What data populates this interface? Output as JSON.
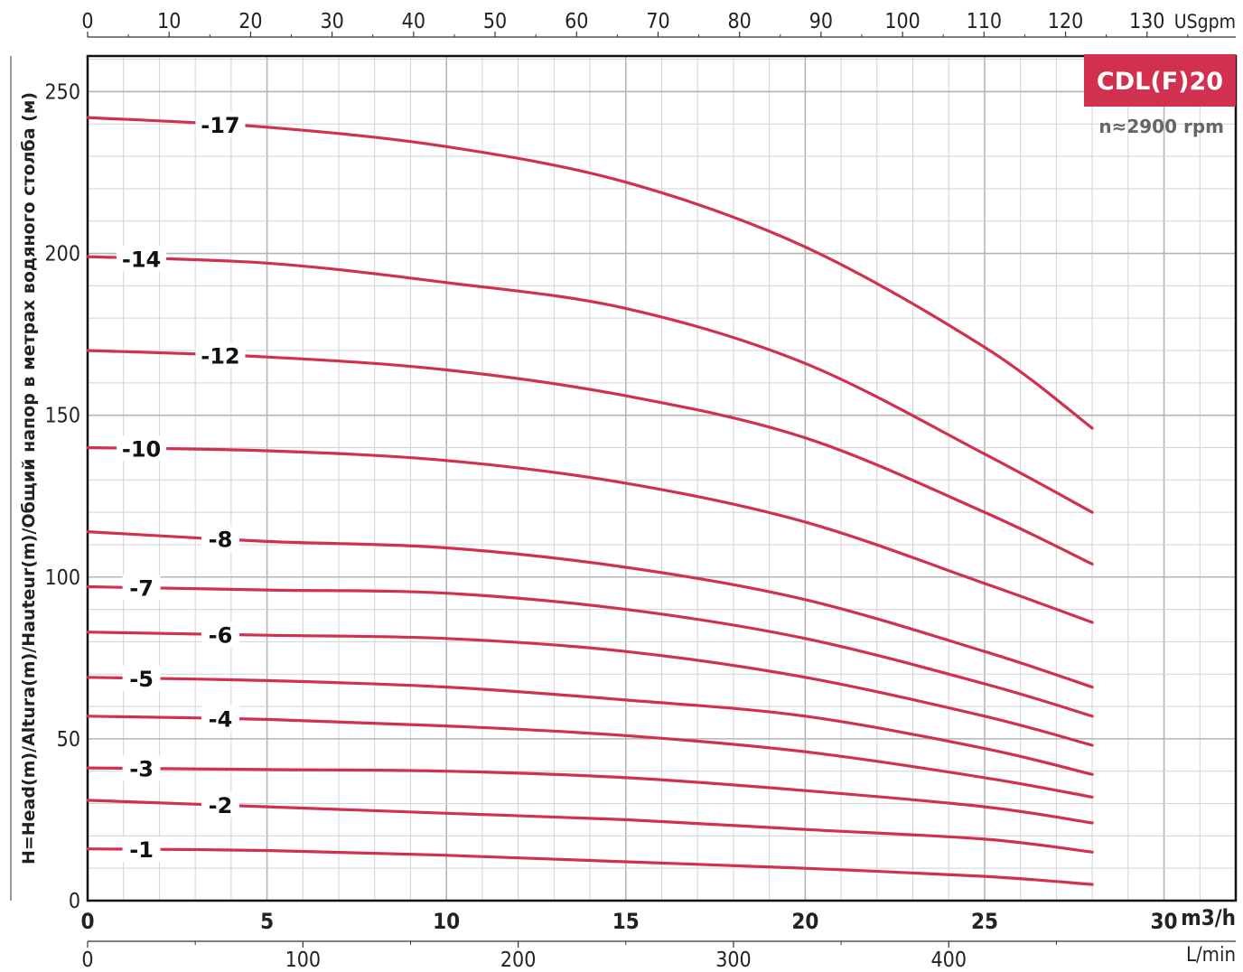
{
  "model": "CDL(F)20",
  "speed": "n≈2900 rpm",
  "colors": {
    "curve": "#d1314f",
    "model_box": "#d1314f",
    "grid": "#c8c8c8"
  },
  "chart_data": {
    "type": "line",
    "title": "",
    "ylabel": "H=Head(m)/Altura(m)/Hauteur(m)/Общий напор в метрах водяного столба (м)",
    "xlabel": "m3/h",
    "xlim": [
      0,
      30
    ],
    "ylim": [
      0,
      250
    ],
    "grid": true,
    "x_axis_bottom": {
      "unit": "m3/h",
      "ticks": [
        "0",
        "5",
        "10",
        "15",
        "20",
        "25",
        "30"
      ]
    },
    "x_axis_bottom_lmin": {
      "unit": "L/min",
      "ticks": [
        "0",
        "100",
        "200",
        "300",
        "400"
      ]
    },
    "x_axis_top_usgpm": {
      "unit": "USgpm",
      "ticks": [
        "0",
        "10",
        "20",
        "30",
        "40",
        "50",
        "60",
        "70",
        "80",
        "90",
        "100",
        "110",
        "120",
        "130"
      ]
    },
    "y_ticks": [
      "0",
      "50",
      "100",
      "150",
      "200",
      "250"
    ],
    "series": [
      {
        "name": "-17",
        "label_x": 3.7,
        "x": [
          0,
          5,
          10,
          15,
          20,
          25,
          28
        ],
        "y": [
          242,
          239,
          233,
          222,
          202,
          171,
          146
        ]
      },
      {
        "name": "-14",
        "label_x": 1.5,
        "x": [
          0,
          5,
          10,
          15,
          20,
          25,
          28
        ],
        "y": [
          199,
          197,
          191,
          183,
          166,
          138,
          120
        ]
      },
      {
        "name": "-12",
        "label_x": 3.7,
        "x": [
          0,
          5,
          10,
          15,
          20,
          25,
          28
        ],
        "y": [
          170,
          168,
          164,
          156,
          143,
          120,
          104
        ]
      },
      {
        "name": "-10",
        "label_x": 1.5,
        "x": [
          0,
          5,
          10,
          15,
          20,
          25,
          28
        ],
        "y": [
          140,
          139,
          136,
          129,
          117,
          98,
          86
        ]
      },
      {
        "name": "-8",
        "label_x": 3.7,
        "x": [
          0,
          5,
          10,
          15,
          20,
          25,
          28
        ],
        "y": [
          114,
          111,
          109,
          103,
          93,
          77,
          66
        ]
      },
      {
        "name": "-7",
        "label_x": 1.5,
        "x": [
          0,
          5,
          10,
          15,
          20,
          25,
          28
        ],
        "y": [
          97,
          96,
          95,
          90,
          81,
          67,
          57
        ]
      },
      {
        "name": "-6",
        "label_x": 3.7,
        "x": [
          0,
          5,
          10,
          15,
          20,
          25,
          28
        ],
        "y": [
          83,
          82,
          81,
          77,
          69,
          57,
          48
        ]
      },
      {
        "name": "-5",
        "label_x": 1.5,
        "x": [
          0,
          5,
          10,
          15,
          20,
          25,
          28
        ],
        "y": [
          69,
          68,
          66,
          62,
          57,
          47,
          39
        ]
      },
      {
        "name": "-4",
        "label_x": 3.7,
        "x": [
          0,
          5,
          10,
          15,
          20,
          25,
          28
        ],
        "y": [
          57,
          56,
          54,
          51,
          46,
          38,
          32
        ]
      },
      {
        "name": "-3",
        "label_x": 1.5,
        "x": [
          0,
          5,
          10,
          15,
          20,
          25,
          28
        ],
        "y": [
          41,
          40.5,
          40,
          38,
          34,
          29,
          24
        ]
      },
      {
        "name": "-2",
        "label_x": 3.7,
        "x": [
          0,
          5,
          10,
          15,
          20,
          25,
          28
        ],
        "y": [
          31,
          29,
          27,
          25,
          22,
          19,
          15
        ]
      },
      {
        "name": "-1",
        "label_x": 1.5,
        "x": [
          0,
          5,
          10,
          15,
          20,
          25,
          28
        ],
        "y": [
          16,
          15.5,
          14,
          12,
          10,
          7.5,
          5
        ]
      }
    ]
  }
}
